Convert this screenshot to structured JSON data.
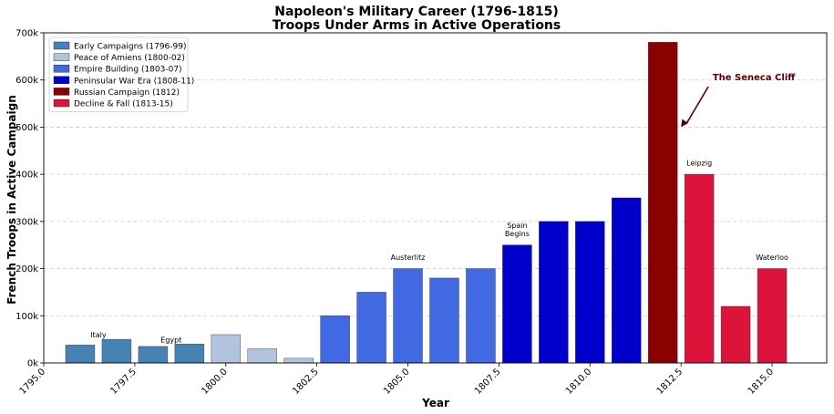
{
  "chart_data": {
    "type": "bar",
    "title": "Napoleon's Military Career (1796-1815)",
    "subtitle": "Troops Under Arms in Active Operations",
    "xlabel": "Year",
    "ylabel": "French Troops in Active Campaign",
    "xlim": [
      1795,
      1816.5
    ],
    "ylim": [
      0,
      700000
    ],
    "xticks": [
      1795.0,
      1797.5,
      1800.0,
      1802.5,
      1805.0,
      1807.5,
      1810.0,
      1812.5,
      1815.0
    ],
    "xtick_labels": [
      "1795.0",
      "1797.5",
      "1800.0",
      "1802.5",
      "1805.0",
      "1807.5",
      "1810.0",
      "1812.5",
      "1815.0"
    ],
    "yticks": [
      0,
      100000,
      200000,
      300000,
      400000,
      500000,
      600000,
      700000
    ],
    "ytick_labels": [
      "0k",
      "100k",
      "200k",
      "300k",
      "400k",
      "500k",
      "600k",
      "700k"
    ],
    "grid": "y-dashed",
    "legend_position": "top-left",
    "bar_width_years": 0.8,
    "series": [
      {
        "name": "Early Campaigns (1796-99)",
        "color": "#4682b4",
        "x": [
          1796,
          1797,
          1798,
          1799
        ],
        "values": [
          38000,
          50000,
          35000,
          40000
        ]
      },
      {
        "name": "Peace of Amiens (1800-02)",
        "color": "#b0c4de",
        "x": [
          1800,
          1801,
          1802
        ],
        "values": [
          60000,
          30000,
          10000
        ]
      },
      {
        "name": "Empire Building (1803-07)",
        "color": "#4169e1",
        "x": [
          1803,
          1804,
          1805,
          1806,
          1807
        ],
        "values": [
          100000,
          150000,
          200000,
          180000,
          200000
        ]
      },
      {
        "name": "Peninsular War Era (1808-11)",
        "color": "#0000cd",
        "x": [
          1808,
          1809,
          1810,
          1811
        ],
        "values": [
          250000,
          300000,
          300000,
          350000
        ]
      },
      {
        "name": "Russian Campaign (1812)",
        "color": "#8b0000",
        "x": [
          1812
        ],
        "values": [
          680000
        ]
      },
      {
        "name": "Decline & Fall (1813-15)",
        "color": "#dc143c",
        "x": [
          1813,
          1814,
          1815
        ],
        "values": [
          400000,
          120000,
          200000
        ]
      }
    ],
    "bar_annotations": [
      {
        "x": 1796.5,
        "y": 50000,
        "lines": [
          "Italy"
        ]
      },
      {
        "x": 1798.5,
        "y": 40000,
        "lines": [
          "Egypt"
        ]
      },
      {
        "x": 1805,
        "y": 215000,
        "lines": [
          "Austerlitz"
        ]
      },
      {
        "x": 1808,
        "y": 265000,
        "lines": [
          "Spain",
          "Begins"
        ]
      },
      {
        "x": 1813,
        "y": 415000,
        "lines": [
          "Leipzig"
        ]
      },
      {
        "x": 1815,
        "y": 215000,
        "lines": [
          "Waterloo"
        ]
      }
    ],
    "arrow_annotation": {
      "text": "The Seneca Cliff",
      "text_at": [
        1814.5,
        580000
      ],
      "points_to": [
        1812.5,
        500000
      ],
      "color": "#5a0000"
    }
  }
}
